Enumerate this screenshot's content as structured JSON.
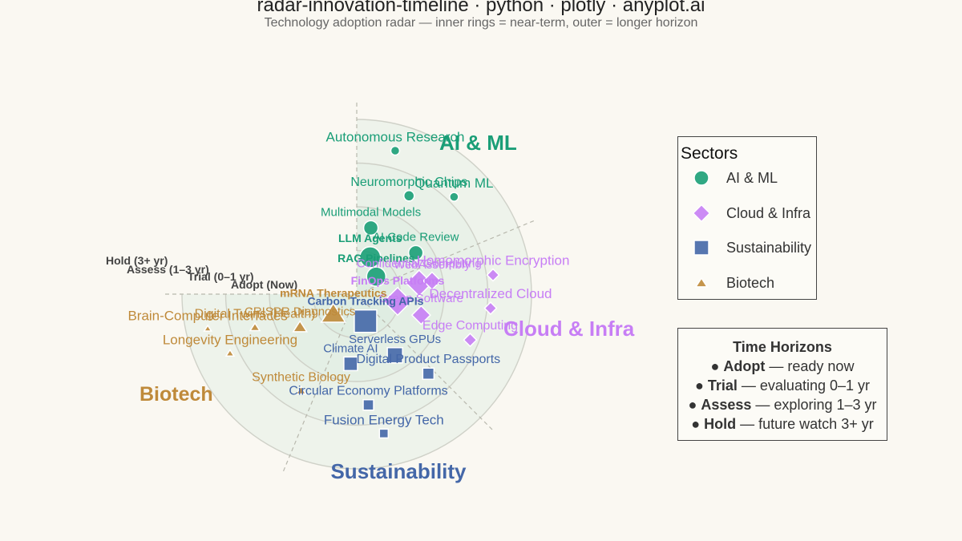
{
  "title": "radar-innovation-timeline · python · plotly · anyplot.ai",
  "subtitle": "Technology adoption radar — inner rings = near-term, outer = longer horizon",
  "legend": {
    "title": "Sectors",
    "items": [
      {
        "label": "AI & ML",
        "color": "#1a9e77",
        "symbol": "circle"
      },
      {
        "label": "Cloud & Infra",
        "color": "#c77ef5",
        "symbol": "diamond"
      },
      {
        "label": "Sustainability",
        "color": "#4467a8",
        "symbol": "square"
      },
      {
        "label": "Biotech",
        "color": "#bf8a3a",
        "symbol": "triangle"
      }
    ]
  },
  "horizons": {
    "title": "Time Horizons",
    "rows": [
      {
        "term": "Adopt",
        "desc": " — ready now"
      },
      {
        "term": "Trial",
        "desc": " — evaluating 0–1 yr"
      },
      {
        "term": "Assess",
        "desc": " — exploring 1–3 yr"
      },
      {
        "term": "Hold",
        "desc": " — future watch 3+ yr"
      }
    ]
  },
  "chart_data": {
    "type": "scatter",
    "polar": true,
    "ring_labels": [
      "Adopt (Now)",
      "Trial (0–1 yr)",
      "Assess (1–3 yr)",
      "Hold (3+ yr)"
    ],
    "ring_radius_range": [
      0,
      4
    ],
    "sectors": [
      {
        "name": "AI & ML",
        "angle_range_deg": [
          0,
          67.5
        ],
        "color": "#1a9e77",
        "symbol": "circle"
      },
      {
        "name": "Cloud & Infra",
        "angle_range_deg": [
          67.5,
          135
        ],
        "color": "#c77ef5",
        "symbol": "diamond"
      },
      {
        "name": "Sustainability",
        "angle_range_deg": [
          135,
          202.5
        ],
        "color": "#4467a8",
        "symbol": "square"
      },
      {
        "name": "Biotech",
        "angle_range_deg": [
          202.5,
          270
        ],
        "color": "#bf8a3a",
        "symbol": "triangle"
      }
    ],
    "points": [
      {
        "name": "LLM Agents",
        "sector": "AI & ML",
        "ring": 0.9,
        "angle": 20,
        "size": 26
      },
      {
        "name": "RAG Pipelines",
        "sector": "AI & ML",
        "ring": 0.6,
        "angle": 48,
        "size": 24
      },
      {
        "name": "Multimodal Models",
        "sector": "AI & ML",
        "ring": 1.55,
        "angle": 12,
        "size": 18
      },
      {
        "name": "AI Code Review",
        "sector": "AI & ML",
        "ring": 1.65,
        "angle": 55,
        "size": 18
      },
      {
        "name": "Neuromorphic Chips",
        "sector": "AI & ML",
        "ring": 2.55,
        "angle": 28,
        "size": 13
      },
      {
        "name": "Autonomous Research",
        "sector": "AI & ML",
        "ring": 3.4,
        "angle": 15,
        "size": 11
      },
      {
        "name": "Quantum ML",
        "sector": "AI & ML",
        "ring": 3.15,
        "angle": 45,
        "size": 11
      },
      {
        "name": "FinOps Platforms",
        "sector": "Cloud & Infra",
        "ring": 0.95,
        "angle": 100,
        "size": 30
      },
      {
        "name": "Confidential Computing",
        "sector": "Cloud & Infra",
        "ring": 1.45,
        "angle": 80,
        "size": 28
      },
      {
        "name": "WebAssembly",
        "sector": "Cloud & Infra",
        "ring": 1.75,
        "angle": 80,
        "size": 19
      },
      {
        "name": "Green Software",
        "sector": "Cloud & Infra",
        "ring": 1.55,
        "angle": 108,
        "size": 20
      },
      {
        "name": "Edge Computing",
        "sector": "Cloud & Infra",
        "ring": 2.8,
        "angle": 112,
        "size": 14
      },
      {
        "name": "Decentralized Cloud",
        "sector": "Cloud & Infra",
        "ring": 3.08,
        "angle": 96,
        "size": 13
      },
      {
        "name": "Homomorphic Encryption",
        "sector": "Cloud & Infra",
        "ring": 3.15,
        "angle": 82,
        "size": 13
      },
      {
        "name": "Carbon Tracking APIs",
        "sector": "Sustainability",
        "ring": 0.65,
        "angle": 162,
        "size": 28
      },
      {
        "name": "Serverless GPUs",
        "sector": "Sustainability",
        "ring": 1.65,
        "angle": 148,
        "size": 19
      },
      {
        "name": "Climate AI",
        "sector": "Sustainability",
        "ring": 1.6,
        "angle": 185,
        "size": 17
      },
      {
        "name": "Digital Product Passports",
        "sector": "Sustainability",
        "ring": 2.45,
        "angle": 138,
        "size": 14
      },
      {
        "name": "Circular Economy Platforms",
        "sector": "Sustainability",
        "ring": 2.55,
        "angle": 174,
        "size": 13
      },
      {
        "name": "Fusion Energy Tech",
        "sector": "Sustainability",
        "ring": 3.25,
        "angle": 169,
        "size": 11
      },
      {
        "name": "mRNA Therapeutics",
        "sector": "Biotech",
        "ring": 0.7,
        "angle": 230,
        "size": 30
      },
      {
        "name": "CRISPR Diagnostics",
        "sector": "Biotech",
        "ring": 1.5,
        "angle": 240,
        "size": 17
      },
      {
        "name": "Synthetic Biology",
        "sector": "Biotech",
        "ring": 2.55,
        "angle": 210,
        "size": 12
      },
      {
        "name": "Digital Twins (Health)",
        "sector": "Biotech",
        "ring": 2.45,
        "angle": 252,
        "size": 12
      },
      {
        "name": "Longevity Engineering",
        "sector": "Biotech",
        "ring": 3.2,
        "angle": 245,
        "size": 10
      },
      {
        "name": "Brain-Computer Interfaces",
        "sector": "Biotech",
        "ring": 3.5,
        "angle": 257,
        "size": 9
      }
    ]
  }
}
